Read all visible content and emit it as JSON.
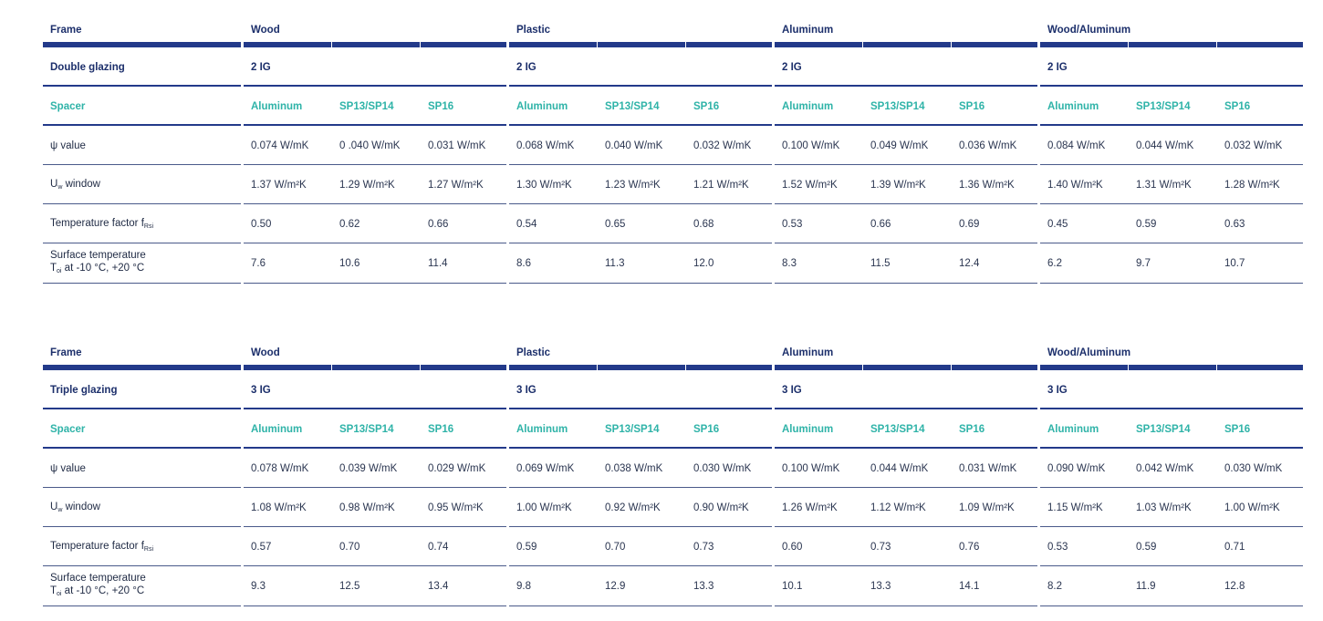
{
  "tables": [
    {
      "frame_label": "Frame",
      "frames": [
        "Wood",
        "Plastic",
        "Aluminum",
        "Wood/Aluminum"
      ],
      "glazing_label": "Double glazing",
      "glazing_values": [
        "2 IG",
        "2 IG",
        "2 IG",
        "2 IG"
      ],
      "spacer_label": "Spacer",
      "spacers": [
        "Aluminum",
        "SP13/SP14",
        "SP16",
        "Aluminum",
        "SP13/SP14",
        "SP16",
        "Aluminum",
        "SP13/SP14",
        "SP16",
        "Aluminum",
        "SP13/SP14",
        "SP16"
      ],
      "psi_label": "ψ value",
      "psi": [
        "0.074 W/mK",
        "0 .040 W/mK",
        "0.031 W/mK",
        "0.068 W/mK",
        "0.040 W/mK",
        "0.032 W/mK",
        "0.100 W/mK",
        "0.049 W/mK",
        "0.036 W/mK",
        "0.084 W/mK",
        "0.044 W/mK",
        "0.032 W/mK"
      ],
      "uw_label_main": "U",
      "uw_label_sub": "w",
      "uw_label_rest": " window",
      "uw": [
        "1.37 W/m²K",
        "1.29 W/m²K",
        "1.27 W/m²K",
        "1.30 W/m²K",
        "1.23 W/m²K",
        "1.21 W/m²K",
        "1.52 W/m²K",
        "1.39 W/m²K",
        "1.36 W/m²K",
        "1.40 W/m²K",
        "1.31 W/m²K",
        "1.28 W/m²K"
      ],
      "tf_label_main": "Temperature factor f",
      "tf_label_sub": "Rsi",
      "tf": [
        "0.50",
        "0.62",
        "0.66",
        "0.54",
        "0.65",
        "0.68",
        "0.53",
        "0.66",
        "0.69",
        "0.45",
        "0.59",
        "0.63"
      ],
      "st_label_line1": "Surface temperature",
      "st_label_main": "T",
      "st_label_sub": "oi",
      "st_label_rest": " at -10 °C, +20 °C",
      "st": [
        "7.6",
        "10.6",
        "11.4",
        "8.6",
        "11.3",
        "12.0",
        "8.3",
        "11.5",
        "12.4",
        "6.2",
        "9.7",
        "10.7"
      ]
    },
    {
      "frame_label": "Frame",
      "frames": [
        "Wood",
        "Plastic",
        "Aluminum",
        "Wood/Aluminum"
      ],
      "glazing_label": "Triple glazing",
      "glazing_values": [
        "3 IG",
        "3 IG",
        "3 IG",
        "3 IG"
      ],
      "spacer_label": "Spacer",
      "spacers": [
        "Aluminum",
        "SP13/SP14",
        "SP16",
        "Aluminum",
        "SP13/SP14",
        "SP16",
        "Aluminum",
        "SP13/SP14",
        "SP16",
        "Aluminum",
        "SP13/SP14",
        "SP16"
      ],
      "psi_label": "ψ value",
      "psi": [
        "0.078 W/mK",
        "0.039 W/mK",
        "0.029 W/mK",
        "0.069 W/mK",
        "0.038 W/mK",
        "0.030 W/mK",
        "0.100 W/mK",
        "0.044 W/mK",
        "0.031 W/mK",
        "0.090 W/mK",
        "0.042 W/mK",
        "0.030 W/mK"
      ],
      "uw_label_main": "U",
      "uw_label_sub": "w",
      "uw_label_rest": " window",
      "uw": [
        "1.08 W/m²K",
        "0.98 W/m²K",
        "0.95 W/m²K",
        "1.00 W/m²K",
        "0.92 W/m²K",
        "0.90 W/m²K",
        "1.26 W/m²K",
        "1.12 W/m²K",
        "1.09 W/m²K",
        "1.15 W/m²K",
        "1.03 W/m²K",
        "1.00 W/m²K"
      ],
      "tf_label_main": "Temperature factor f",
      "tf_label_sub": "Rsi",
      "tf": [
        "0.57",
        "0.70",
        "0.74",
        "0.59",
        "0.70",
        "0.73",
        "0.60",
        "0.73",
        "0.76",
        "0.53",
        "0.59",
        "0.71"
      ],
      "st_label_line1": "Surface temperature",
      "st_label_main": "T",
      "st_label_sub": "oi",
      "st_label_rest": " at -10 °C, +20 °C",
      "st": [
        "9.3",
        "12.5",
        "13.4",
        "9.8",
        "12.9",
        "13.3",
        "10.1",
        "13.3",
        "14.1",
        "8.2",
        "11.9",
        "12.8"
      ]
    }
  ],
  "colors": {
    "navy": "#233a8a",
    "teal": "#2fb3a8",
    "text": "#1f2a44"
  }
}
